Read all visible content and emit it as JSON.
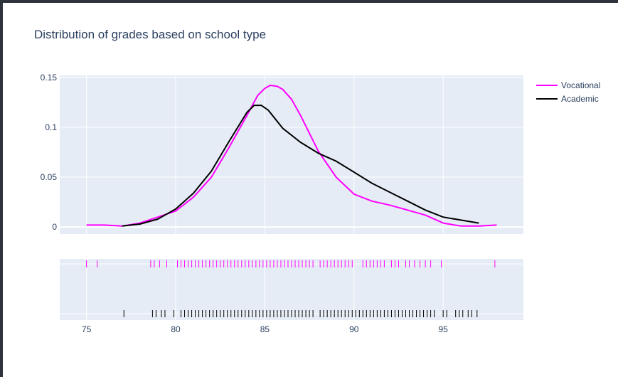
{
  "chart_data": {
    "type": "line",
    "title": "Distribution of grades based on school type",
    "xlabel": "",
    "ylabel": "",
    "xlim": [
      73.5,
      99.5
    ],
    "ylim": [
      -0.007,
      0.152
    ],
    "y_ticks": [
      {
        "value": 0,
        "label": "0"
      },
      {
        "value": 0.05,
        "label": "0.05"
      },
      {
        "value": 0.1,
        "label": "0.1"
      },
      {
        "value": 0.15,
        "label": "0.15"
      }
    ],
    "x_ticks": [
      {
        "value": 75,
        "label": "75"
      },
      {
        "value": 80,
        "label": "80"
      },
      {
        "value": 85,
        "label": "85"
      },
      {
        "value": 90,
        "label": "90"
      },
      {
        "value": 95,
        "label": "95"
      }
    ],
    "grid": true,
    "legend_position": "top-right",
    "series": [
      {
        "name": "Vocational",
        "color": "#ff00ff",
        "x": [
          75,
          76,
          77,
          78,
          79,
          80,
          81,
          82,
          83,
          84,
          84.6,
          85,
          85.3,
          85.7,
          86,
          86.5,
          87,
          88,
          89,
          90,
          91,
          92,
          93,
          94,
          95,
          96,
          97,
          98
        ],
        "y": [
          0.002,
          0.002,
          0.001,
          0.004,
          0.01,
          0.016,
          0.03,
          0.05,
          0.08,
          0.112,
          0.132,
          0.139,
          0.142,
          0.141,
          0.138,
          0.128,
          0.112,
          0.076,
          0.05,
          0.033,
          0.026,
          0.022,
          0.017,
          0.012,
          0.004,
          0.001,
          0.001,
          0.002
        ],
        "rug": [
          75,
          75.6,
          78.6,
          78.8,
          79.1,
          79.5,
          80.1,
          80.3,
          80.5,
          80.7,
          80.9,
          81.1,
          81.3,
          81.5,
          81.7,
          81.9,
          82.1,
          82.3,
          82.5,
          82.7,
          82.9,
          83.1,
          83.3,
          83.5,
          83.7,
          83.9,
          84.1,
          84.3,
          84.5,
          84.7,
          84.9,
          85.1,
          85.3,
          85.5,
          85.7,
          85.9,
          86.1,
          86.3,
          86.5,
          86.7,
          86.9,
          87.1,
          87.3,
          87.5,
          87.7,
          88.1,
          88.3,
          88.5,
          88.7,
          88.9,
          89.1,
          89.3,
          89.5,
          89.7,
          89.9,
          90.5,
          90.7,
          90.9,
          91.1,
          91.3,
          91.5,
          91.7,
          92.1,
          92.3,
          92.5,
          92.9,
          93.1,
          93.4,
          93.7,
          94,
          94.3,
          94.9,
          97.9
        ]
      },
      {
        "name": "Academic",
        "color": "#000000",
        "x": [
          77,
          78,
          79,
          80,
          81,
          82,
          83,
          84,
          84.4,
          84.8,
          85.2,
          86,
          87,
          88,
          89,
          90,
          91,
          92,
          93,
          94,
          95,
          96,
          97
        ],
        "y": [
          0.001,
          0.003,
          0.008,
          0.018,
          0.034,
          0.056,
          0.086,
          0.115,
          0.122,
          0.122,
          0.117,
          0.099,
          0.085,
          0.074,
          0.066,
          0.055,
          0.044,
          0.035,
          0.026,
          0.017,
          0.01,
          0.007,
          0.004
        ],
        "rug": [
          77.1,
          78.7,
          78.9,
          79.2,
          79.4,
          79.9,
          80.3,
          80.5,
          80.7,
          80.9,
          81.1,
          81.3,
          81.5,
          81.7,
          81.9,
          82.1,
          82.3,
          82.5,
          82.7,
          82.9,
          83.1,
          83.3,
          83.5,
          83.7,
          83.9,
          84.1,
          84.3,
          84.5,
          84.7,
          84.9,
          85.1,
          85.3,
          85.5,
          85.7,
          85.9,
          86.1,
          86.3,
          86.5,
          86.7,
          86.9,
          87.1,
          87.3,
          87.5,
          87.7,
          88.1,
          88.3,
          88.5,
          88.7,
          88.9,
          89.1,
          89.3,
          89.5,
          89.7,
          89.9,
          90.1,
          90.3,
          90.5,
          90.7,
          90.9,
          91.1,
          91.3,
          91.5,
          91.7,
          91.9,
          92.1,
          92.3,
          92.5,
          92.7,
          92.9,
          93.1,
          93.3,
          93.5,
          93.7,
          93.9,
          94.1,
          94.3,
          94.5,
          95,
          95.2,
          95.7,
          95.9,
          96.1,
          96.4,
          96.6,
          96.9
        ]
      }
    ]
  }
}
